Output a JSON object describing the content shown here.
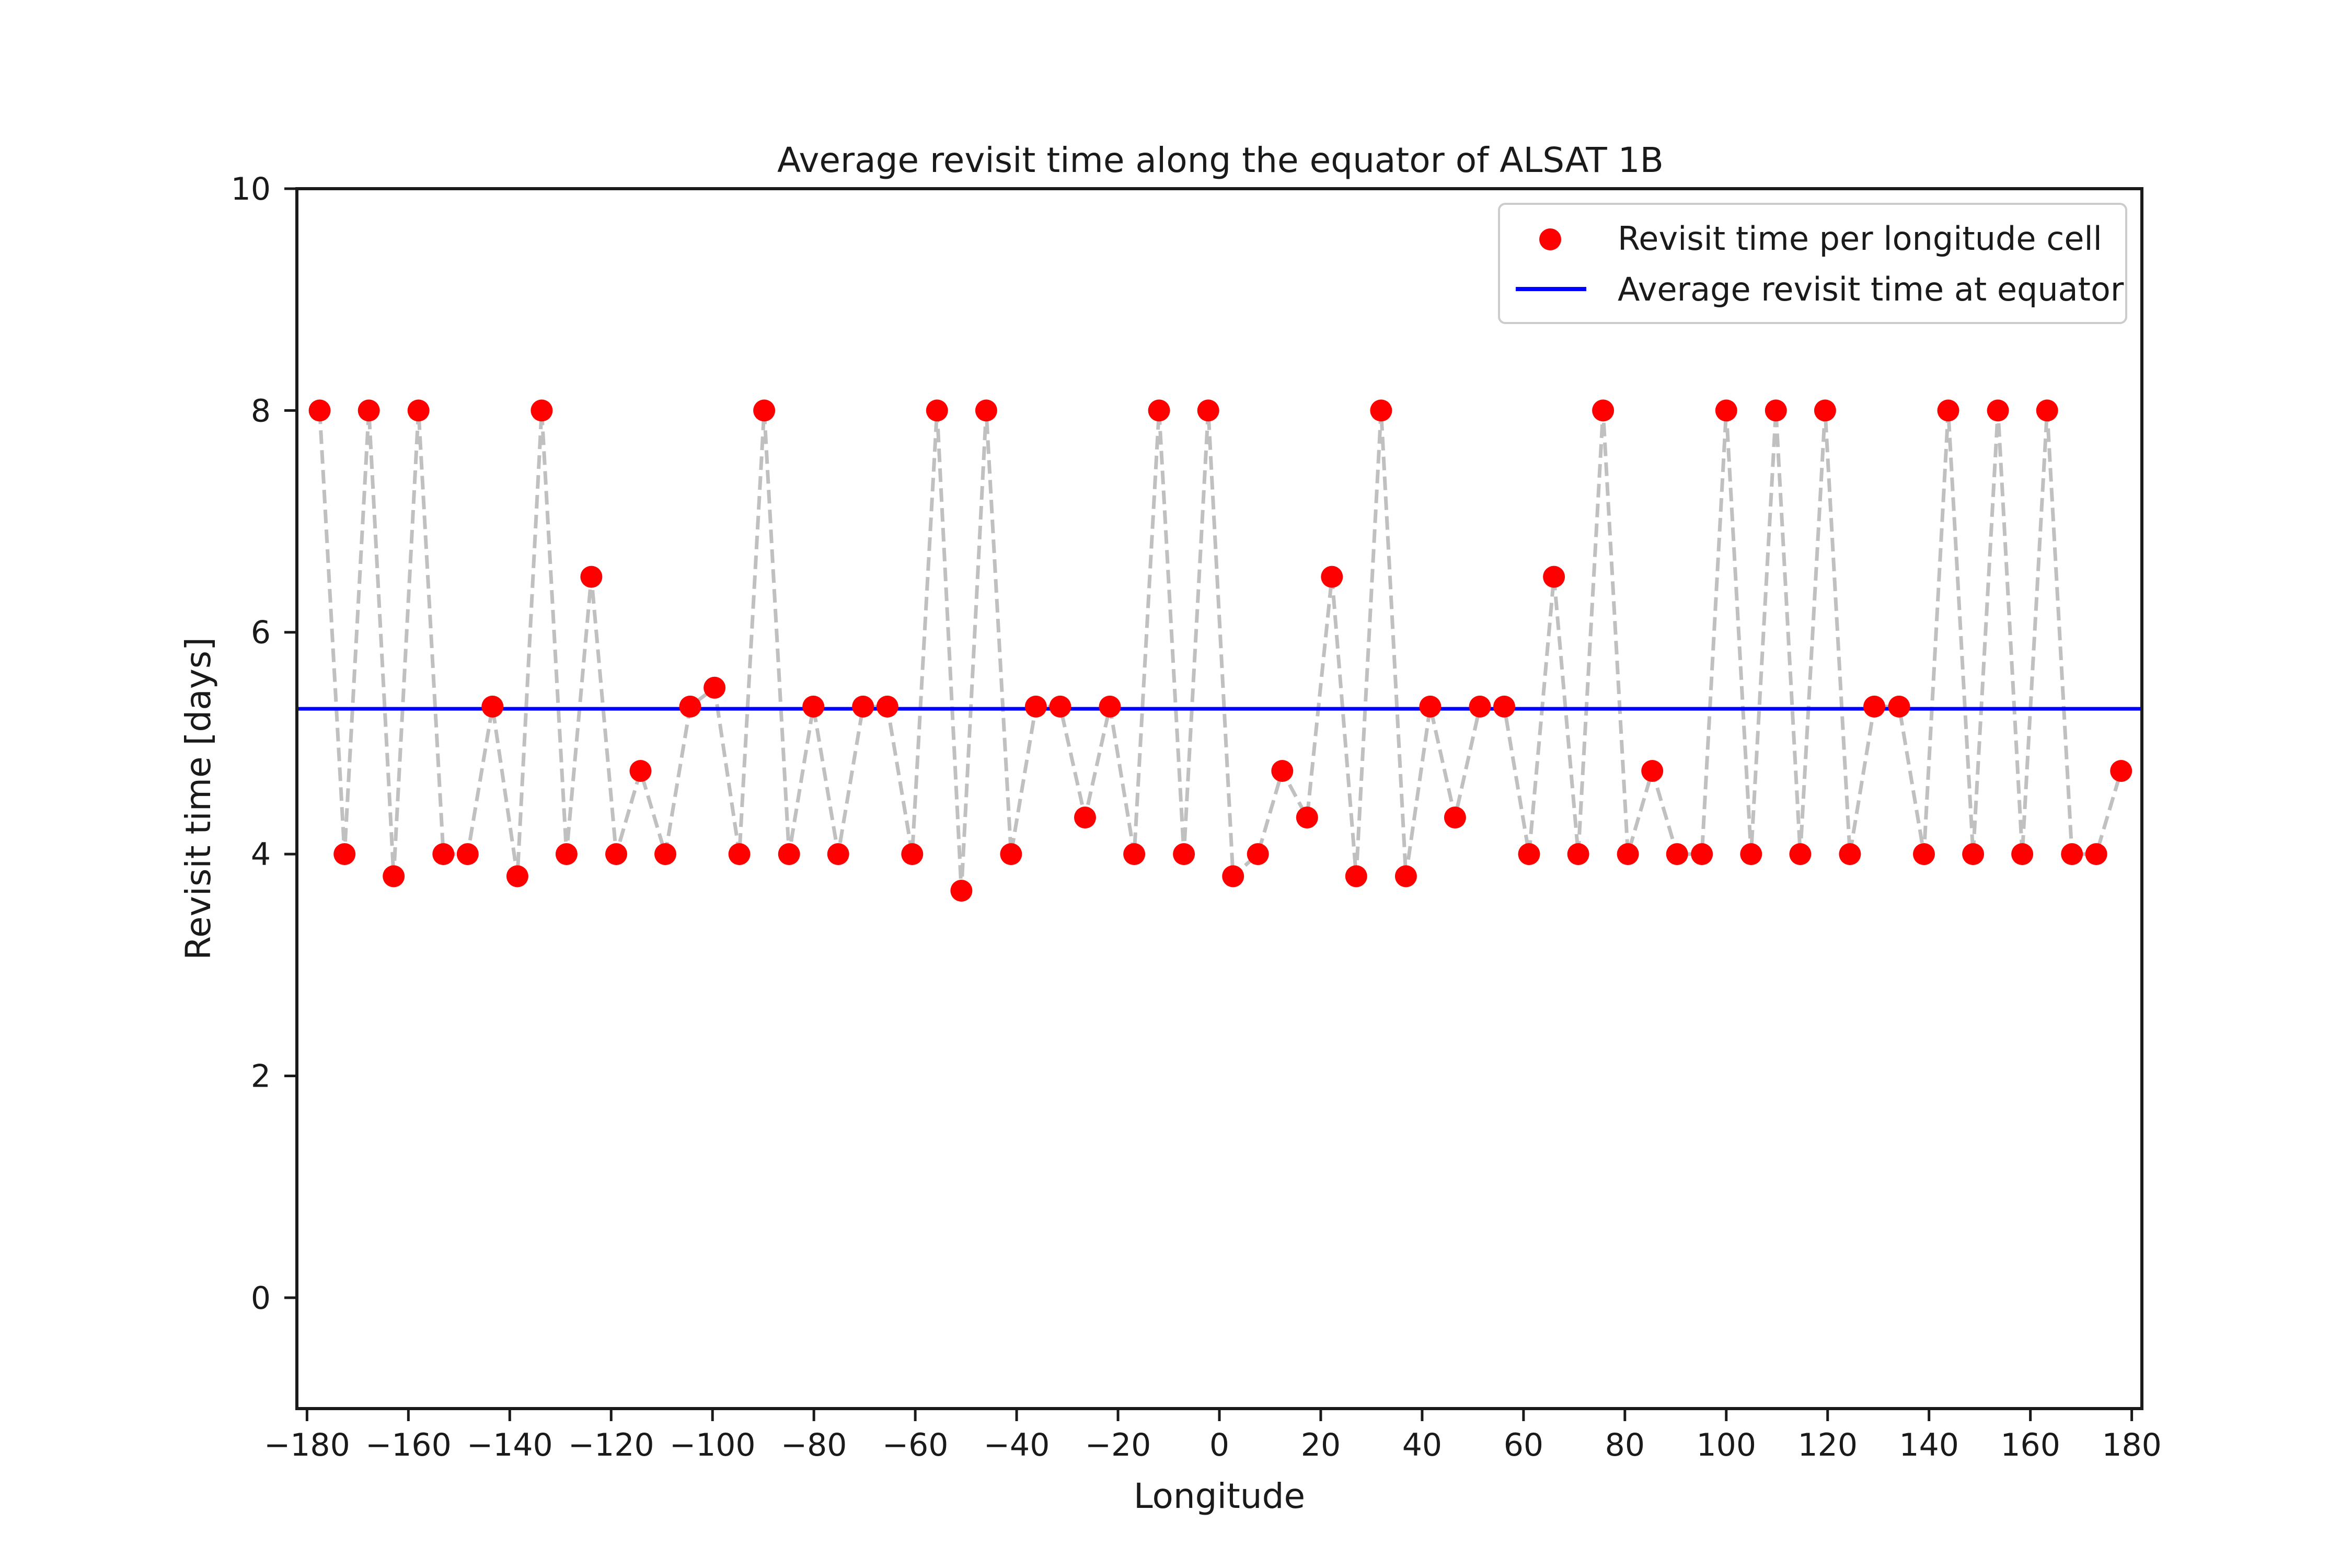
{
  "chart_data": {
    "type": "scatter",
    "title": "Average revisit time along the equator of ALSAT 1B",
    "xlabel": "Longitude",
    "ylabel": "Revisit time [days]",
    "xlim": [
      -182,
      182
    ],
    "ylim": [
      -1,
      10
    ],
    "xticks": [
      -180,
      -160,
      -140,
      -120,
      -100,
      -80,
      -60,
      -40,
      -20,
      0,
      20,
      40,
      60,
      80,
      100,
      120,
      140,
      160,
      180
    ],
    "xtick_labels": [
      "−180",
      "−160",
      "−140",
      "−120",
      "−100",
      "−80",
      "−60",
      "−40",
      "−20",
      "0",
      "20",
      "40",
      "60",
      "80",
      "100",
      "120",
      "140",
      "160",
      "180"
    ],
    "yticks": [
      0,
      2,
      4,
      6,
      8,
      10
    ],
    "ytick_labels": [
      "0",
      "2",
      "4",
      "6",
      "8",
      "10"
    ],
    "grid": false,
    "legend_position": "top-right",
    "series": [
      {
        "name": "Revisit time per longitude cell",
        "kind": "scatter+dashed-line",
        "marker_color": "#ff0000",
        "line_color": "#c0c0c0",
        "points": [
          [
            -177.5,
            8
          ],
          [
            -172.6,
            4
          ],
          [
            -167.8,
            8
          ],
          [
            -162.9,
            3.8
          ],
          [
            -158.0,
            8
          ],
          [
            -153.1,
            4
          ],
          [
            -148.3,
            4
          ],
          [
            -143.4,
            5.33
          ],
          [
            -138.5,
            3.8
          ],
          [
            -133.7,
            8
          ],
          [
            -128.8,
            4
          ],
          [
            -123.9,
            6.5
          ],
          [
            -119.0,
            4
          ],
          [
            -114.2,
            4.75
          ],
          [
            -109.3,
            4
          ],
          [
            -104.4,
            5.33
          ],
          [
            -99.6,
            5.5
          ],
          [
            -94.7,
            4
          ],
          [
            -89.8,
            8
          ],
          [
            -84.9,
            4
          ],
          [
            -80.1,
            5.33
          ],
          [
            -75.2,
            4
          ],
          [
            -70.3,
            5.33
          ],
          [
            -65.5,
            5.33
          ],
          [
            -60.6,
            4
          ],
          [
            -55.7,
            8
          ],
          [
            -50.9,
            3.67
          ],
          [
            -46.0,
            8
          ],
          [
            -41.1,
            4
          ],
          [
            -36.2,
            5.33
          ],
          [
            -31.4,
            5.33
          ],
          [
            -26.5,
            4.33
          ],
          [
            -21.6,
            5.33
          ],
          [
            -16.8,
            4
          ],
          [
            -11.9,
            8
          ],
          [
            -7.0,
            4
          ],
          [
            -2.2,
            8
          ],
          [
            2.7,
            3.8
          ],
          [
            7.6,
            4
          ],
          [
            12.4,
            4.75
          ],
          [
            17.3,
            4.33
          ],
          [
            22.2,
            6.5
          ],
          [
            27.0,
            3.8
          ],
          [
            31.9,
            8
          ],
          [
            36.8,
            3.8
          ],
          [
            41.6,
            5.33
          ],
          [
            46.5,
            4.33
          ],
          [
            51.4,
            5.33
          ],
          [
            56.2,
            5.33
          ],
          [
            61.1,
            4
          ],
          [
            66.0,
            6.5
          ],
          [
            70.8,
            4
          ],
          [
            75.7,
            8
          ],
          [
            80.6,
            4
          ],
          [
            85.4,
            4.75
          ],
          [
            90.3,
            4
          ],
          [
            95.2,
            4
          ],
          [
            100.0,
            8
          ],
          [
            104.9,
            4
          ],
          [
            109.8,
            8
          ],
          [
            114.6,
            4
          ],
          [
            119.5,
            8
          ],
          [
            124.4,
            4
          ],
          [
            129.2,
            5.33
          ],
          [
            134.1,
            5.33
          ],
          [
            139.0,
            4
          ],
          [
            143.8,
            8
          ],
          [
            148.7,
            4
          ],
          [
            153.6,
            8
          ],
          [
            158.4,
            4
          ],
          [
            163.3,
            8
          ],
          [
            168.2,
            4
          ],
          [
            173.0,
            4
          ],
          [
            177.9,
            4.75
          ]
        ]
      },
      {
        "name": "Average revisit time at equator",
        "kind": "hline",
        "color": "#0000ff",
        "value": 5.31
      }
    ]
  }
}
